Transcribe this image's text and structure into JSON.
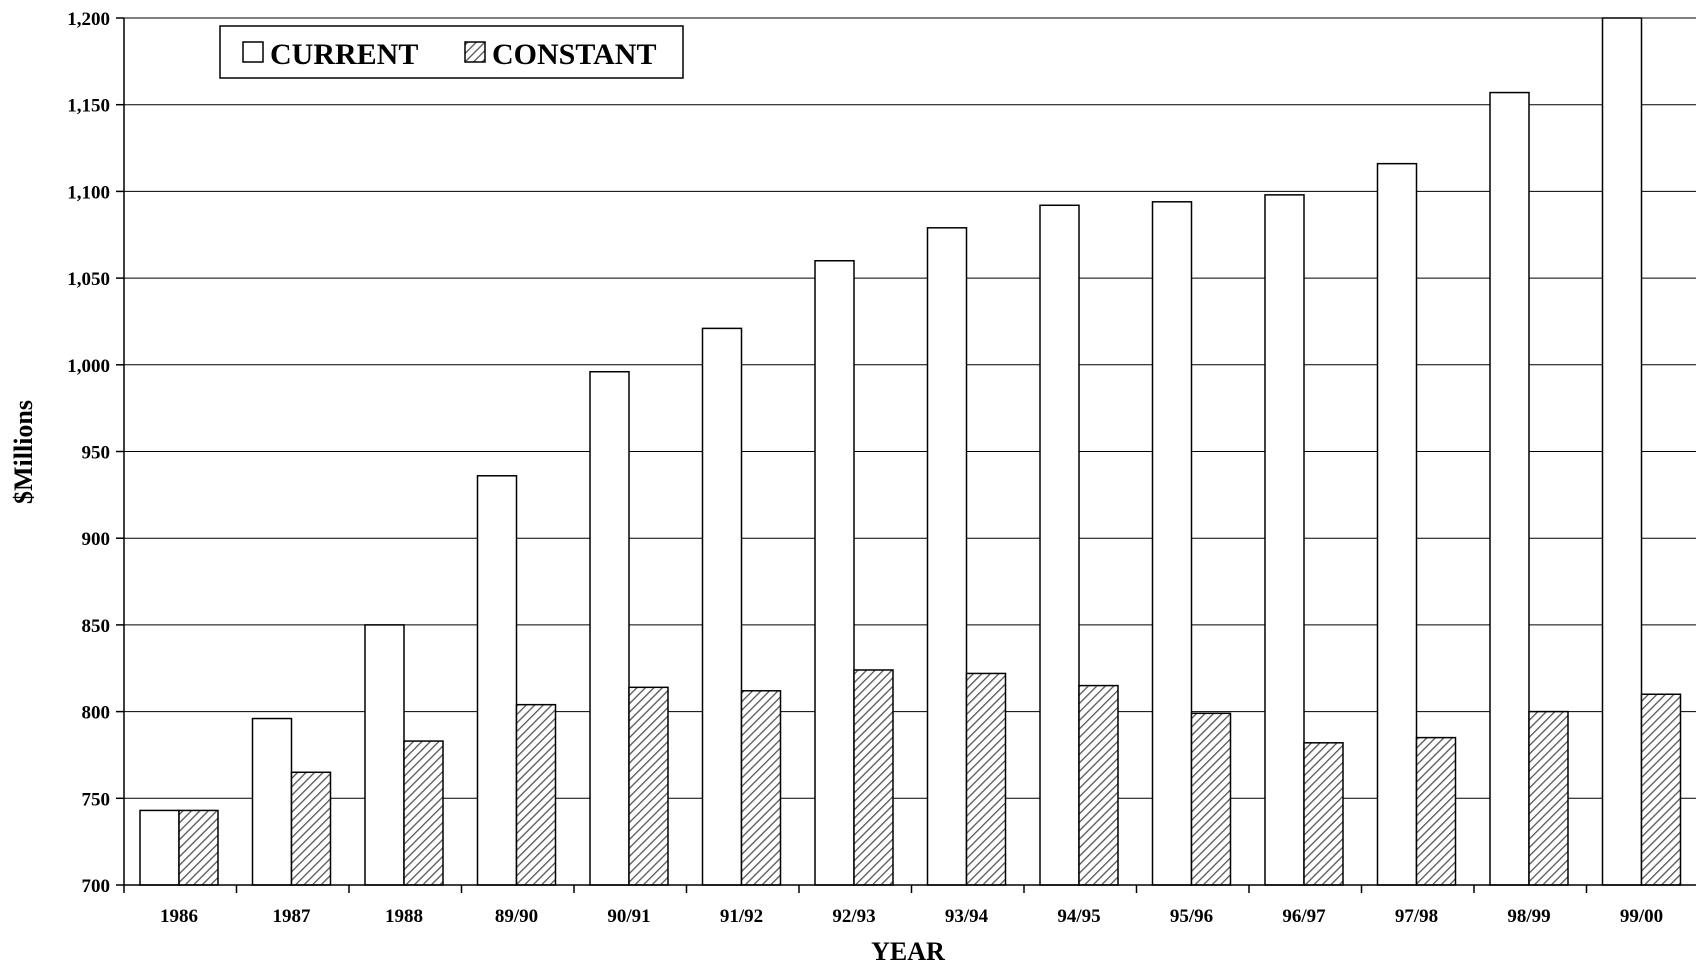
{
  "chart_data": {
    "type": "bar",
    "xlabel": "YEAR",
    "ylabel": "$Millions",
    "ylim": [
      700,
      1200
    ],
    "yticks": [
      700,
      750,
      800,
      850,
      900,
      950,
      1000,
      1050,
      1100,
      1150,
      1200
    ],
    "ytick_labels": [
      "700",
      "750",
      "800",
      "850",
      "900",
      "950",
      "1,000",
      "1,050",
      "1,100",
      "1,150",
      "1,200"
    ],
    "grid": true,
    "legend_position": "top-left",
    "categories": [
      "1986",
      "1987",
      "1988",
      "89/90",
      "90/91",
      "91/92",
      "92/93",
      "93/94",
      "94/95",
      "95/96",
      "96/97",
      "97/98",
      "98/99",
      "99/00"
    ],
    "series": [
      {
        "name": "CURRENT",
        "fill": "#ffffff",
        "pattern": "none",
        "values": [
          743,
          796,
          850,
          936,
          996,
          1021,
          1060,
          1079,
          1092,
          1094,
          1098,
          1116,
          1157,
          1200
        ]
      },
      {
        "name": "CONSTANT",
        "fill": "#ffffff",
        "pattern": "diagonal-hatch",
        "values": [
          743,
          765,
          783,
          804,
          814,
          812,
          824,
          822,
          815,
          799,
          782,
          785,
          800,
          810
        ]
      }
    ]
  }
}
